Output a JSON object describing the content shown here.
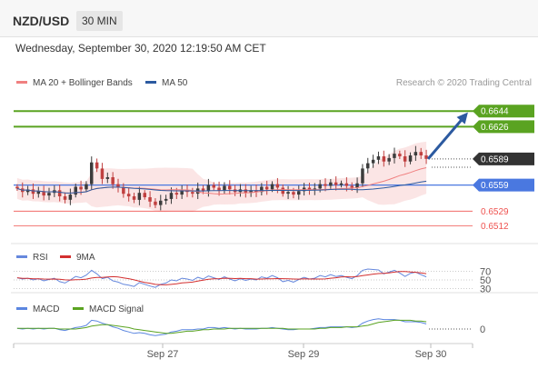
{
  "header": {
    "symbol": "NZD/USD",
    "timeframe": "30 MIN",
    "datetime": "Wednesday, September 30, 2020 12:19:50 AM CET"
  },
  "colors": {
    "resistance": "#5aa321",
    "pivot": "#4a78e0",
    "support": "#ef5350",
    "current": "#333333",
    "candle_up": "#3c3c3c",
    "candle_down": "#c04040",
    "band_fill": "#f9d3d3",
    "ma20": "#f08080",
    "ma50": "#2c5aa0",
    "arrow": "#2c5aa0",
    "rsi": "#6688dd",
    "rsi_ma": "#d32f2f",
    "macd": "#5b86e0",
    "macd_signal": "#5aa321"
  },
  "chart_data": [
    {
      "type": "candlestick",
      "title": "",
      "legend": [
        {
          "name": "MA 20 + Bollinger Bands",
          "color": "#f08080"
        },
        {
          "name": "MA 50",
          "color": "#2c5aa0"
        }
      ],
      "legend_position": "top-left",
      "credit": "Research © 2020 Trading Central",
      "x_ticks": [
        "Sep 27",
        "Sep 29",
        "Sep 30"
      ],
      "levels": [
        {
          "value": 0.6644,
          "label": "0.6644",
          "kind": "resistance"
        },
        {
          "value": 0.6626,
          "label": "0.6626",
          "kind": "resistance"
        },
        {
          "value": 0.6589,
          "label": "0.6589",
          "kind": "current"
        },
        {
          "value": 0.6559,
          "label": "0.6559",
          "kind": "pivot"
        },
        {
          "value": 0.6529,
          "label": "0.6529",
          "kind": "support"
        },
        {
          "value": 0.6512,
          "label": "0.6512",
          "kind": "support"
        }
      ],
      "ylim": [
        0.6498,
        0.6663
      ],
      "close": [
        0.6555,
        0.6551,
        0.6554,
        0.6549,
        0.6552,
        0.6547,
        0.655,
        0.6553,
        0.6546,
        0.6542,
        0.6548,
        0.6557,
        0.6554,
        0.656,
        0.6585,
        0.6578,
        0.6566,
        0.6568,
        0.656,
        0.6556,
        0.6549,
        0.6546,
        0.6542,
        0.655,
        0.6545,
        0.654,
        0.6536,
        0.6541,
        0.6543,
        0.655,
        0.6548,
        0.6553,
        0.6551,
        0.6549,
        0.6555,
        0.6552,
        0.6559,
        0.6556,
        0.6553,
        0.6558,
        0.6554,
        0.6551,
        0.6554,
        0.655,
        0.6553,
        0.6551,
        0.6557,
        0.6554,
        0.656,
        0.6556,
        0.6549,
        0.6551,
        0.6548,
        0.6552,
        0.6556,
        0.6553,
        0.6555,
        0.656,
        0.6558,
        0.6562,
        0.6559,
        0.6561,
        0.6558,
        0.6556,
        0.6561,
        0.6578,
        0.6584,
        0.6588,
        0.6592,
        0.6586,
        0.659,
        0.6595,
        0.6592,
        0.6586,
        0.6593,
        0.6597,
        0.6593,
        0.6589
      ],
      "rsi": {
        "series": [
          {
            "name": "RSI",
            "color": "#6688dd"
          },
          {
            "name": "9MA",
            "color": "#d32f2f"
          }
        ],
        "levels": [
          70,
          50,
          30
        ],
        "values": [
          55,
          52,
          54,
          50,
          53,
          48,
          51,
          54,
          46,
          43,
          50,
          58,
          55,
          61,
          72,
          64,
          53,
          56,
          48,
          45,
          40,
          38,
          35,
          44,
          40,
          36,
          33,
          40,
          43,
          50,
          48,
          54,
          52,
          49,
          56,
          52,
          59,
          55,
          51,
          57,
          52,
          48,
          53,
          49,
          52,
          50,
          57,
          54,
          60,
          55,
          46,
          49,
          45,
          51,
          56,
          52,
          54,
          60,
          57,
          62,
          58,
          60,
          56,
          53,
          60,
          72,
          75,
          74,
          73,
          64,
          68,
          72,
          66,
          58,
          65,
          68,
          62,
          57
        ]
      },
      "macd": {
        "series": [
          {
            "name": "MACD",
            "color": "#5b86e0"
          },
          {
            "name": "MACD Signal",
            "color": "#5aa321"
          }
        ],
        "zero_label": "0",
        "macd_values": [
          0.1,
          0.0,
          0.1,
          0.0,
          0.1,
          0.0,
          0.1,
          0.1,
          -0.1,
          -0.2,
          0.0,
          0.2,
          0.3,
          0.5,
          1.2,
          1.1,
          0.8,
          0.6,
          0.3,
          0.1,
          -0.2,
          -0.4,
          -0.6,
          -0.5,
          -0.6,
          -0.8,
          -0.9,
          -0.8,
          -0.7,
          -0.4,
          -0.3,
          -0.1,
          -0.1,
          -0.1,
          0.0,
          0.0,
          0.2,
          0.2,
          0.1,
          0.2,
          0.1,
          0.0,
          0.1,
          0.0,
          0.0,
          0.0,
          0.1,
          0.1,
          0.2,
          0.1,
          0.0,
          -0.1,
          -0.1,
          0.0,
          0.0,
          0.0,
          0.1,
          0.2,
          0.2,
          0.3,
          0.3,
          0.3,
          0.3,
          0.2,
          0.3,
          0.8,
          1.1,
          1.3,
          1.4,
          1.3,
          1.3,
          1.3,
          1.2,
          1.0,
          1.0,
          1.0,
          0.9,
          0.7
        ],
        "signal_values": [
          0.1,
          0.1,
          0.1,
          0.1,
          0.1,
          0.1,
          0.1,
          0.1,
          0.0,
          0.0,
          0.0,
          0.0,
          0.1,
          0.2,
          0.4,
          0.5,
          0.6,
          0.6,
          0.5,
          0.4,
          0.3,
          0.2,
          0.0,
          -0.1,
          -0.2,
          -0.3,
          -0.4,
          -0.5,
          -0.6,
          -0.6,
          -0.5,
          -0.4,
          -0.3,
          -0.3,
          -0.2,
          -0.1,
          -0.1,
          0.0,
          0.0,
          0.0,
          0.1,
          0.1,
          0.1,
          0.1,
          0.1,
          0.1,
          0.1,
          0.1,
          0.1,
          0.1,
          0.1,
          0.0,
          0.0,
          0.0,
          0.0,
          0.0,
          0.0,
          0.1,
          0.1,
          0.2,
          0.2,
          0.2,
          0.3,
          0.3,
          0.3,
          0.4,
          0.5,
          0.7,
          0.9,
          1.0,
          1.1,
          1.2,
          1.2,
          1.2,
          1.2,
          1.1,
          1.1,
          1.0
        ]
      }
    }
  ]
}
